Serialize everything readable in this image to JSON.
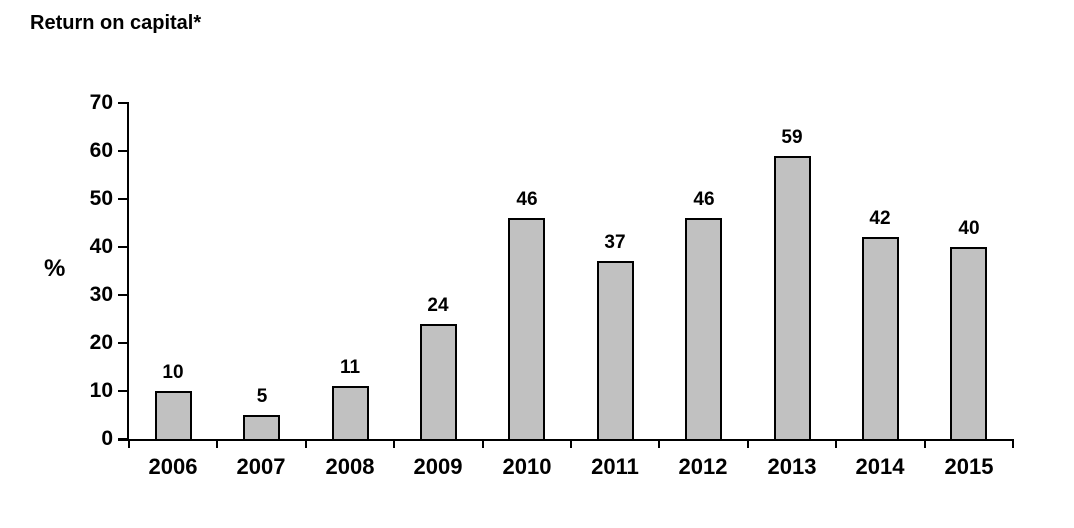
{
  "chart_data": {
    "type": "bar",
    "title": "Return on capital*",
    "xlabel": "",
    "ylabel": "%",
    "categories": [
      "2006",
      "2007",
      "2008",
      "2009",
      "2010",
      "2011",
      "2012",
      "2013",
      "2014",
      "2015"
    ],
    "values": [
      10,
      5,
      11,
      24,
      46,
      37,
      46,
      59,
      42,
      40
    ],
    "ylim": [
      0,
      70
    ],
    "ytick_step": 10,
    "ytick_labels": [
      "0",
      "10",
      "20",
      "30",
      "40",
      "50",
      "60",
      "70"
    ],
    "data_labels": [
      "10",
      "5",
      "11",
      "24",
      "46",
      "37",
      "46",
      "59",
      "42",
      "40"
    ],
    "grid": false,
    "legend": "none"
  },
  "colors": {
    "background": "#ffffff",
    "bar_fill": "#c1c1c1",
    "bar_border": "#000000",
    "axis": "#000000",
    "text": "#000000"
  }
}
